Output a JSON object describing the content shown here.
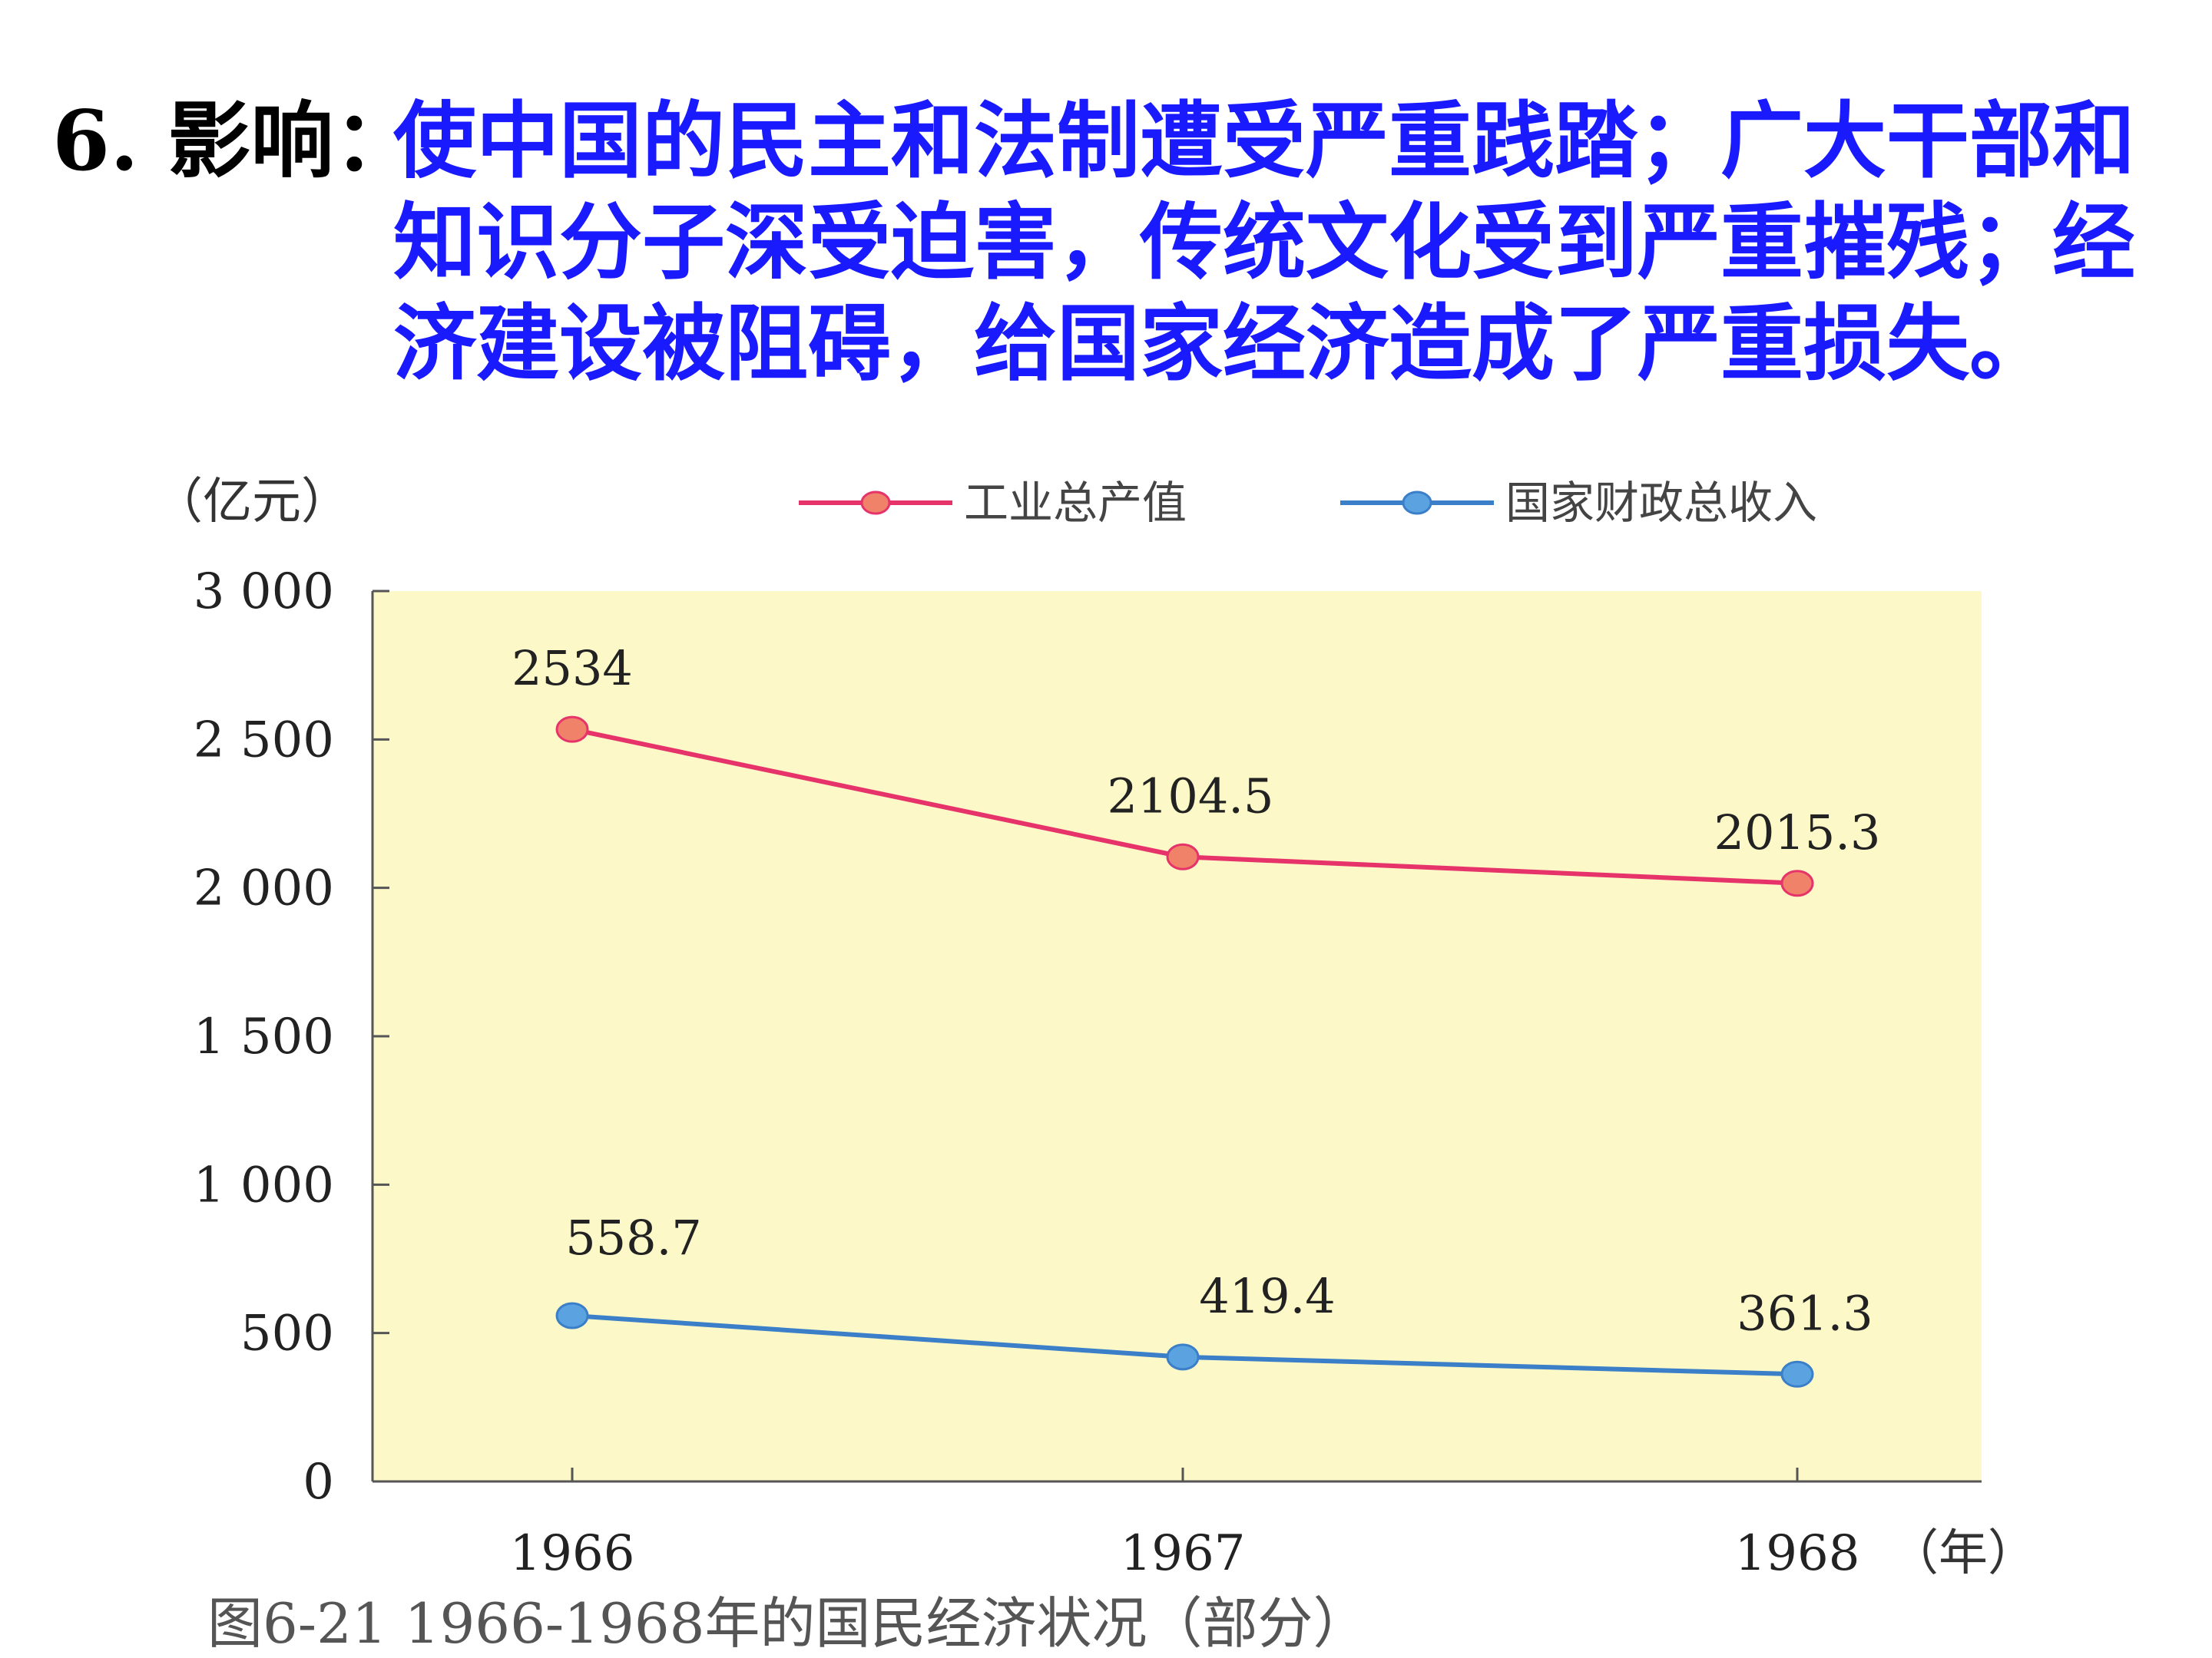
{
  "heading": {
    "label": "6. 影响：",
    "body": "使中国的民主和法制遭受严重践踏；广大干部和知识分子深受迫害，传统文化受到严重摧残；经济建设被阻碍，给国家经济造成了严重损失。"
  },
  "chart_data": {
    "type": "line",
    "y_unit": "（亿元）",
    "x_unit": "（年）",
    "categories": [
      "1966",
      "1967",
      "1968"
    ],
    "ylim": [
      0,
      3000
    ],
    "yticks": [
      0,
      500,
      1000,
      1500,
      2000,
      2500,
      3000
    ],
    "ytick_labels": [
      "0",
      "500",
      "1 000",
      "1 500",
      "2 000",
      "2 500",
      "3 000"
    ],
    "grid": false,
    "plot_background": "#fdf8c8",
    "legend_position": "top",
    "series": [
      {
        "name": "工业总产值",
        "color": "#e6336a",
        "marker_color": "#f0826a",
        "values": [
          2534,
          2104.5,
          2015.3
        ],
        "labels": [
          "2534",
          "2104.5",
          "2015.3"
        ]
      },
      {
        "name": "国家财政总收入",
        "color": "#3a7fc8",
        "marker_color": "#5ba3e0",
        "values": [
          558.7,
          419.4,
          361.3
        ],
        "labels": [
          "558.7",
          "419.4",
          "361.3"
        ]
      }
    ],
    "caption": "图6-21 1966-1968年的国民经济状况（部分）"
  }
}
